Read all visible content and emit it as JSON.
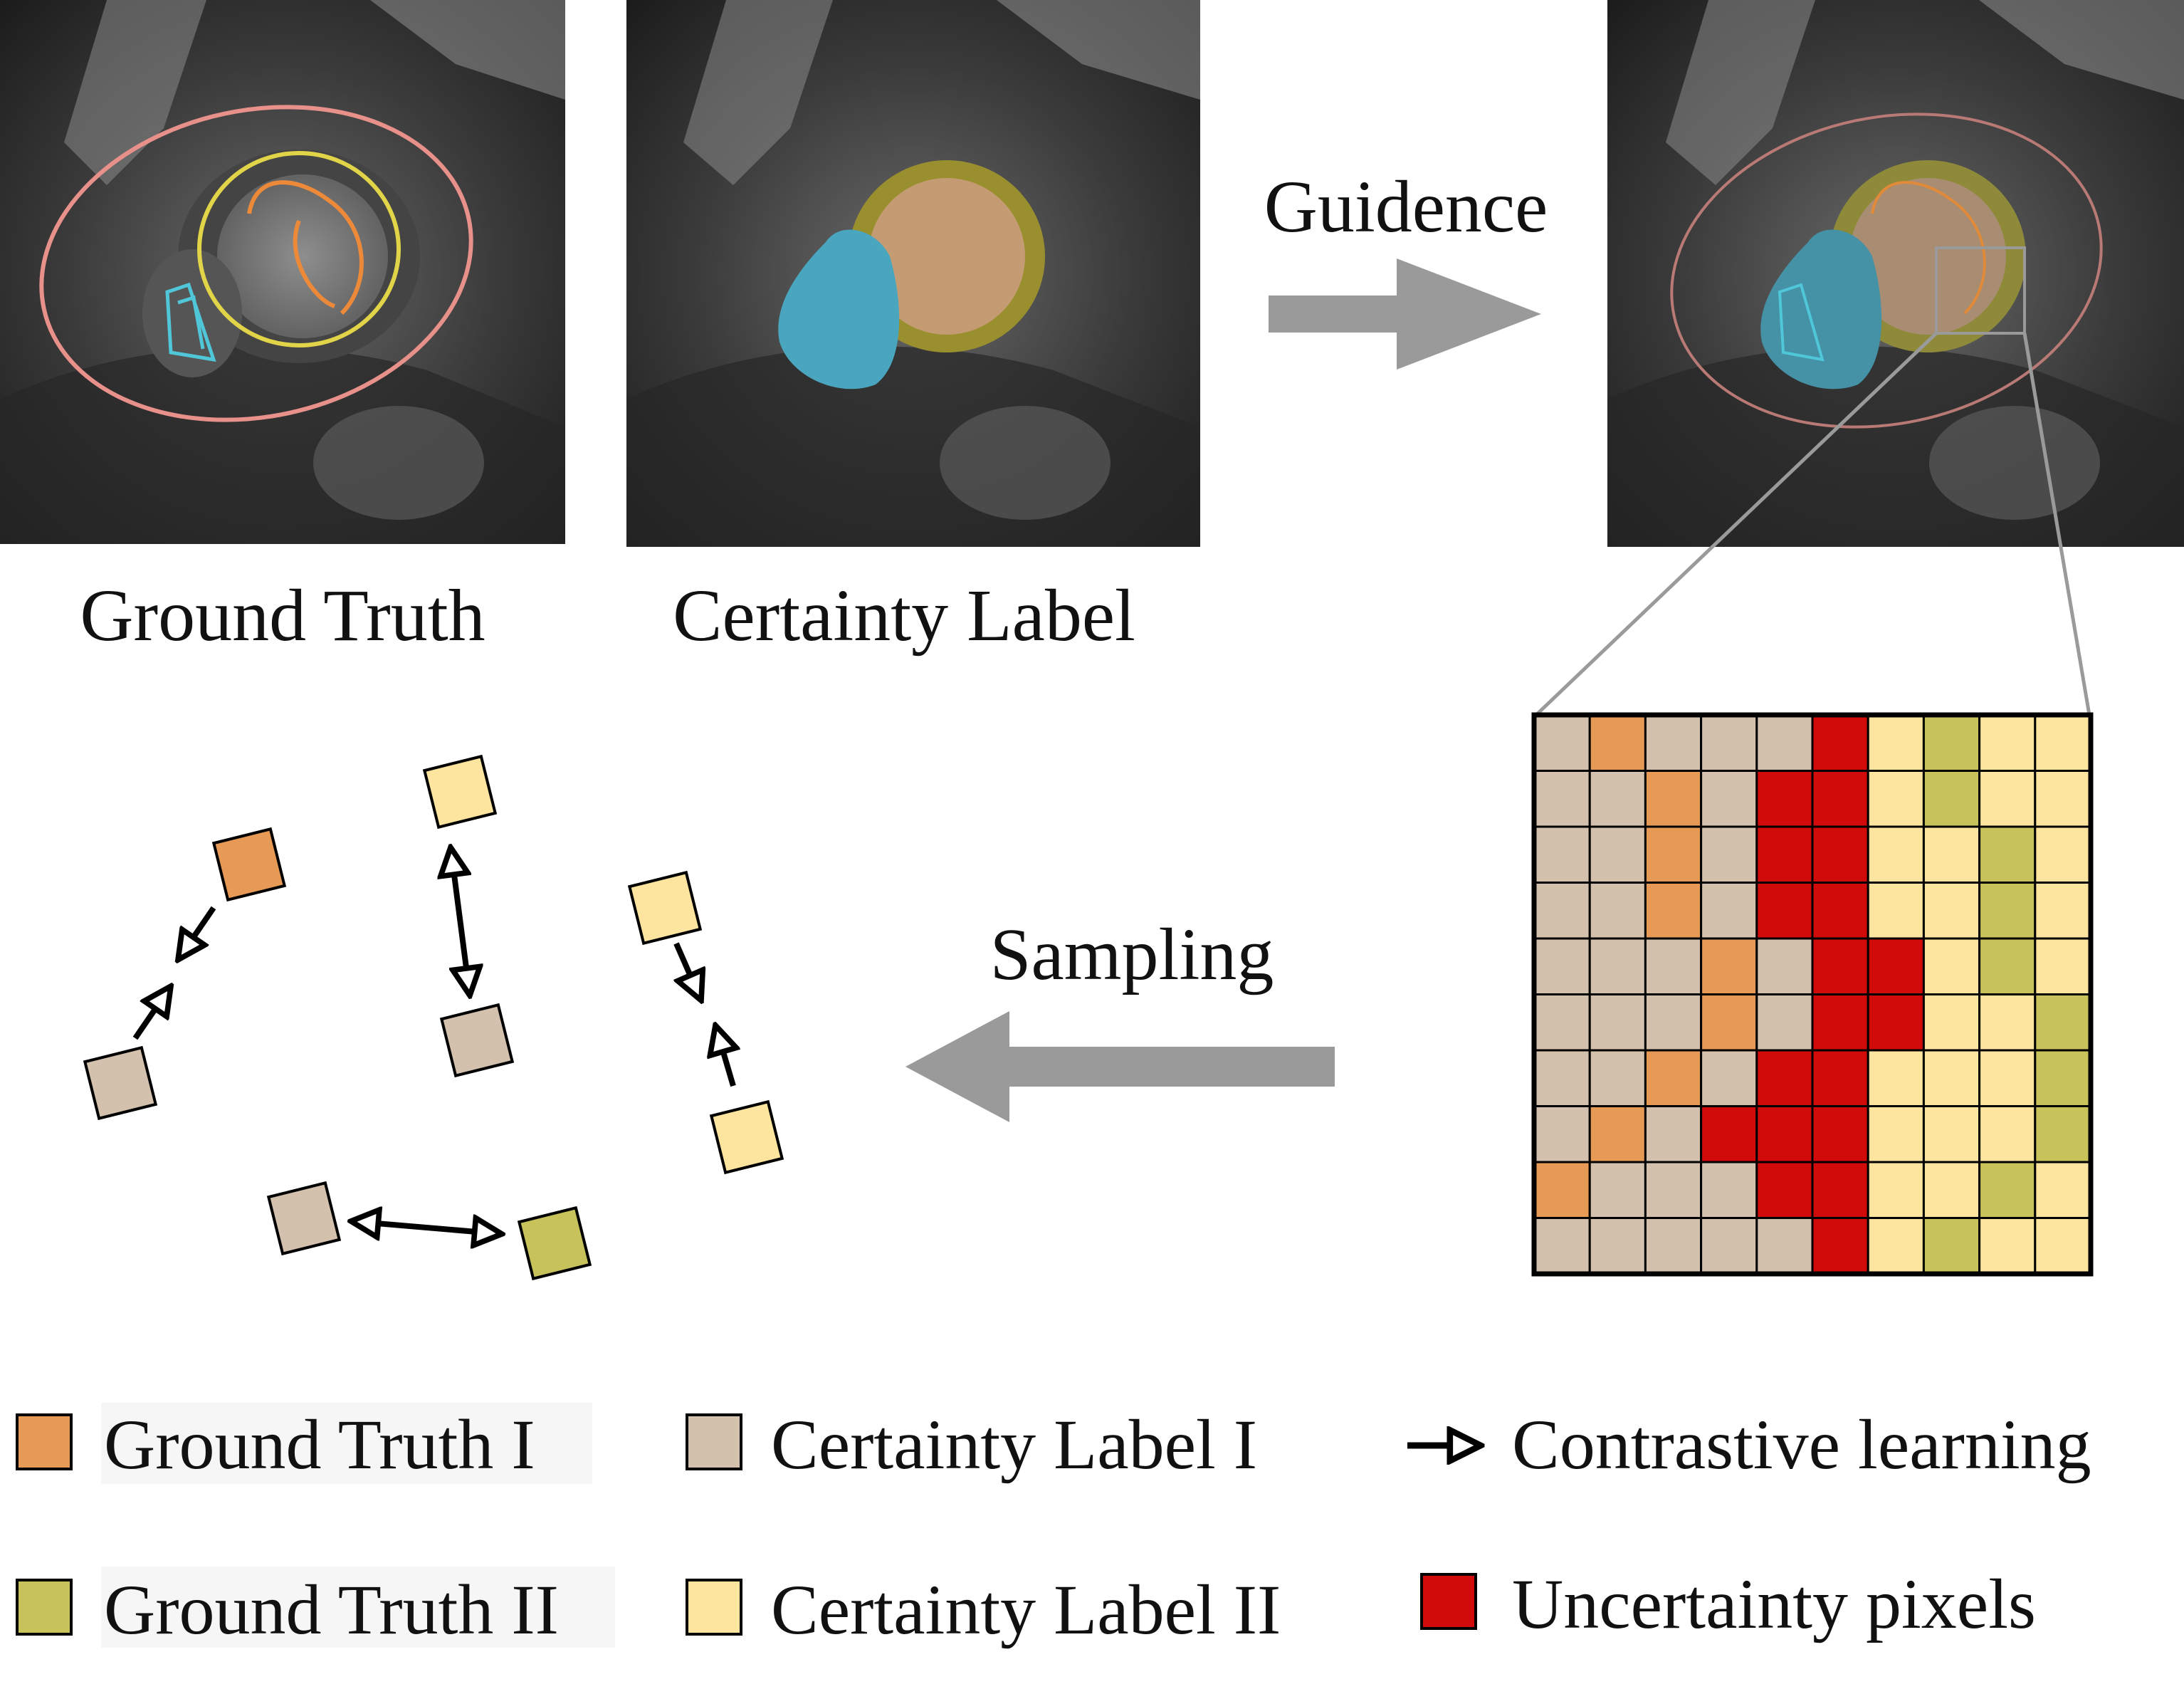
{
  "panels": {
    "ground_truth_caption": "Ground Truth",
    "certainty_label_caption": "Certainty Label"
  },
  "arrows": {
    "guidance_label": "Guidence",
    "sampling_label": "Sampling"
  },
  "colors": {
    "ground_truth_1": "#e79a55",
    "ground_truth_2": "#c7c25a",
    "certainty_label_1": "#d3c1ad",
    "certainty_label_2": "#fde59f",
    "uncertainty": "#d10a0a",
    "arrow_gray": "#9a9a9a"
  },
  "grid": {
    "rows": [
      "COCCCUYGYY",
      "CCOCUUYGYY",
      "CCOCUUYYGY",
      "CCOCUUYYGY",
      "CCCOCUUYGY",
      "CCCOCUUYYG",
      "CCOCUUYYYG",
      "COCUUUYYYG",
      "OCCCUUYYGY",
      "CCCCCUYGYY"
    ],
    "legend": {
      "C": "certainty_label_1",
      "O": "ground_truth_1",
      "Y": "certainty_label_2",
      "G": "ground_truth_2",
      "U": "uncertainty"
    }
  },
  "legend": [
    {
      "name": "ground-truth-1",
      "color_key": "ground_truth_1",
      "label": "Ground Truth I"
    },
    {
      "name": "certainty-label-1",
      "color_key": "certainty_label_1",
      "label": "Certainty Label I"
    },
    {
      "name": "contrastive-learning",
      "icon": "arrow-icon",
      "label": "Contrastive learning"
    },
    {
      "name": "ground-truth-2",
      "color_key": "ground_truth_2",
      "label": "Ground Truth II"
    },
    {
      "name": "certainty-label-2",
      "color_key": "certainty_label_2",
      "label": "Certainty Label II"
    },
    {
      "name": "uncertainty-pixels",
      "color_key": "uncertainty",
      "label": "Uncertainty pixels"
    }
  ]
}
